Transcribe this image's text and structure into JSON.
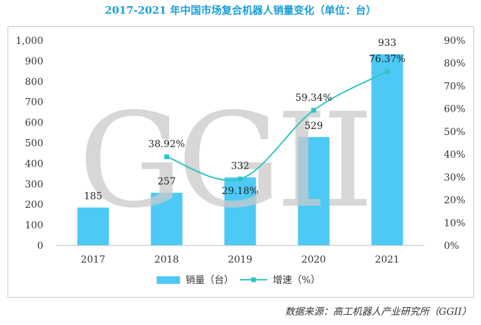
{
  "title": "2017-2021 年中国市场复合机器人销量变化（单位：台）",
  "source": "数据来源：高工机器人产业研究所（GGII）",
  "watermark": "GGII",
  "colors": {
    "bar": "#4dc9f6",
    "line": "#2ec4c4",
    "title": "#1a9fd6",
    "watermark": "#c9c9c9"
  },
  "chart_data": {
    "type": "bar",
    "categories": [
      "2017",
      "2018",
      "2019",
      "2020",
      "2021"
    ],
    "series": [
      {
        "name": "销量（台）",
        "type": "bar",
        "axis": "left",
        "values": [
          185,
          257,
          332,
          529,
          933
        ],
        "labels": [
          "185",
          "257",
          "332",
          "529",
          "933"
        ]
      },
      {
        "name": "增速（%）",
        "type": "line",
        "axis": "right",
        "values": [
          null,
          38.92,
          29.18,
          59.34,
          76.37
        ],
        "labels": [
          "",
          "38.92%",
          "29.18%",
          "59.34%",
          "76.37%"
        ]
      }
    ],
    "ylim": [
      0,
      1000
    ],
    "yticks": [
      "0",
      "100",
      "200",
      "300",
      "400",
      "500",
      "600",
      "700",
      "800",
      "900",
      "1,000"
    ],
    "y2lim": [
      0,
      90
    ],
    "y2ticks": [
      "0%",
      "10%",
      "20%",
      "30%",
      "40%",
      "50%",
      "60%",
      "70%",
      "80%",
      "90%"
    ],
    "grid": false,
    "legend_position": "bottom"
  }
}
